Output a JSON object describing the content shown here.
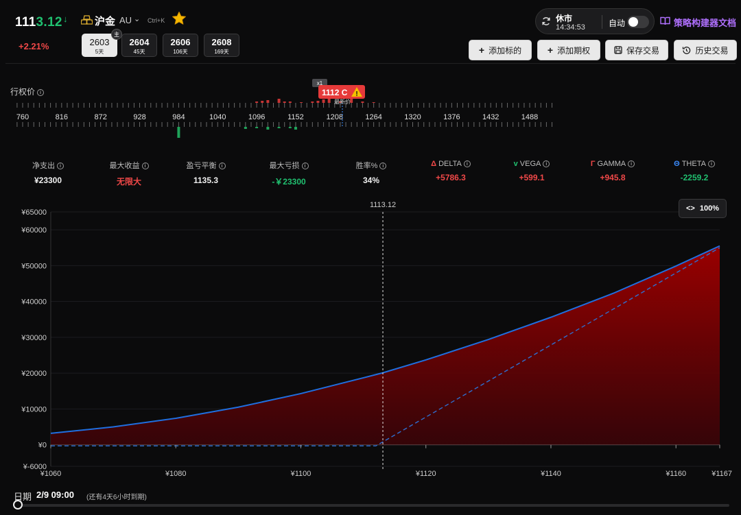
{
  "header": {
    "price_prefix": "111",
    "price_suffix": "3.12",
    "arrow": "↓",
    "change_pct": "+2.21%",
    "symbol_name": "沪金",
    "symbol_code": "AU",
    "chevron": "⌄",
    "hotkey": "Ctrl+K",
    "main_badge": "主"
  },
  "expiries": [
    {
      "code": "2603",
      "days": "5天",
      "active": true
    },
    {
      "code": "2604",
      "days": "45天",
      "active": false
    },
    {
      "code": "2606",
      "days": "106天",
      "active": false
    },
    {
      "code": "2608",
      "days": "169天",
      "active": false
    }
  ],
  "status": {
    "market_state": "休市",
    "time": "14:34:53",
    "auto_label": "自动",
    "docs_link": "策略构建器文档"
  },
  "toolbar": {
    "add_underlying": "添加标的",
    "add_option": "添加期权",
    "save_trade": "保存交易",
    "history_trade": "历史交易",
    "plus": "+"
  },
  "strike": {
    "label": "行权价",
    "info": "i",
    "ticks": [
      "760",
      "816",
      "872",
      "928",
      "984",
      "1040",
      "1096",
      "1152",
      "1208",
      "1264",
      "1320",
      "1376",
      "1432",
      "1488"
    ],
    "position_tag": "1112 C",
    "multiplier_tag": "x1",
    "warn": "!",
    "under_text": "最新价"
  },
  "metrics": [
    {
      "label": "净支出",
      "value": "¥23300",
      "color": "#f0f0f0",
      "prefix": ""
    },
    {
      "label": "最大收益",
      "value": "无限大",
      "color": "#f04848",
      "prefix": ""
    },
    {
      "label": "盈亏平衡",
      "value": "1135.3",
      "color": "#f0f0f0",
      "prefix": ""
    },
    {
      "label": "最大亏损",
      "value": "-￥23300",
      "color": "#20c070",
      "prefix": ""
    },
    {
      "label": "胜率%",
      "value": "34%",
      "color": "#f0f0f0",
      "prefix": ""
    },
    {
      "label": "DELTA",
      "value": "+5786.3",
      "color": "#f04848",
      "prefix": "Δ",
      "prefix_color": "#f04848"
    },
    {
      "label": "VEGA",
      "value": "+599.1",
      "color": "#f04848",
      "prefix": "v",
      "prefix_color": "#20c070"
    },
    {
      "label": "GAMMA",
      "value": "+945.8",
      "color": "#f04848",
      "prefix": "Γ",
      "prefix_color": "#f04848"
    },
    {
      "label": "THETA",
      "value": "-2259.2",
      "color": "#20c070",
      "prefix": "Θ",
      "prefix_color": "#3b8cff"
    }
  ],
  "chart_data": {
    "type": "area",
    "x_ticks": [
      "¥1060",
      "¥1080",
      "¥1100",
      "¥1120",
      "¥1140",
      "¥1160",
      "¥1167"
    ],
    "y_ticks": [
      "¥65000",
      "¥60000",
      "¥50000",
      "¥40000",
      "¥30000",
      "¥20000",
      "¥10000",
      "¥0",
      "¥-6000"
    ],
    "xlim": [
      1060,
      1167
    ],
    "ylim": [
      -6000,
      65000
    ],
    "current_price": 1113.12,
    "current_price_label": "1113.12",
    "series": [
      {
        "x": [
          1060,
          1070,
          1080,
          1090,
          1100,
          1110,
          1113.12,
          1120,
          1130,
          1140,
          1150,
          1160,
          1167
        ],
        "y": [
          3200,
          5000,
          7400,
          10500,
          14300,
          18700,
          20100,
          23700,
          29400,
          35600,
          42300,
          49900,
          55500
        ],
        "color": "#1f6fe0"
      },
      {
        "x": [
          1060,
          1112,
          1167
        ],
        "y": [
          -300,
          -300,
          55000
        ],
        "color": "#2f6fd0",
        "dashed": true
      }
    ]
  },
  "zoom": {
    "icon": "<>",
    "value": "100%"
  },
  "date": {
    "label": "日期",
    "value": "2/9 09:00",
    "remain": "(还有4天6小时到期)"
  },
  "icons": {
    "gold": "gold-bars-icon",
    "star": "star-icon",
    "refresh": "refresh-icon",
    "book": "book-icon",
    "save": "save-icon",
    "history": "history-icon",
    "warning": "warning-icon"
  }
}
